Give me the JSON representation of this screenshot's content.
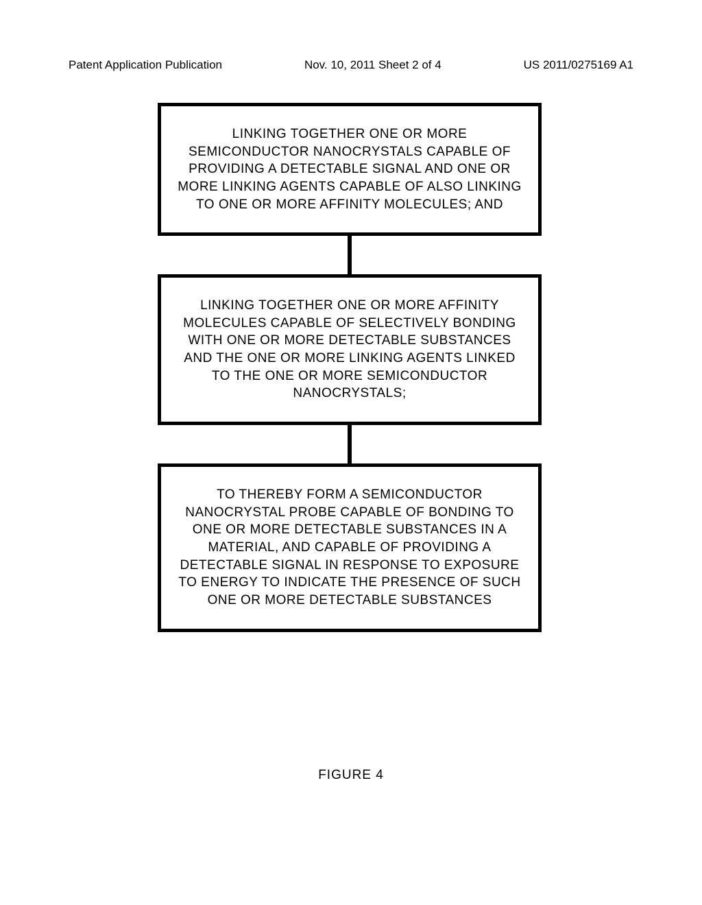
{
  "header": {
    "left": "Patent Application Publication",
    "center": "Nov. 10, 2011  Sheet 2 of 4",
    "right": "US 2011/0275169 A1"
  },
  "flowchart": {
    "type": "flowchart",
    "box_border_color": "#000000",
    "box_border_width": 5,
    "box_background": "#ffffff",
    "connector_color": "#000000",
    "connector_width": 6,
    "connector_height": 56,
    "text_color": "#000000",
    "font_size": 19,
    "nodes": [
      {
        "id": "box1",
        "text": "LINKING TOGETHER ONE OR MORE SEMICONDUCTOR NANOCRYSTALS CAPABLE OF PROVIDING A DETECTABLE SIGNAL AND ONE OR MORE LINKING AGENTS CAPABLE OF ALSO LINKING TO ONE OR MORE AFFINITY MOLECULES; AND"
      },
      {
        "id": "box2",
        "text": "LINKING TOGETHER ONE OR MORE AFFINITY MOLECULES CAPABLE OF SELECTIVELY BONDING WITH ONE OR MORE DETECTABLE SUBSTANCES AND THE ONE OR MORE LINKING AGENTS LINKED TO THE ONE OR MORE SEMICONDUCTOR NANOCRYSTALS;"
      },
      {
        "id": "box3",
        "text": "TO THEREBY FORM A SEMICONDUCTOR NANOCRYSTAL PROBE CAPABLE OF BONDING TO ONE OR MORE DETECTABLE SUBSTANCES IN A MATERIAL, AND CAPABLE OF PROVIDING A DETECTABLE SIGNAL IN RESPONSE TO EXPOSURE TO ENERGY TO INDICATE THE PRESENCE OF SUCH ONE OR MORE DETECTABLE SUBSTANCES"
      }
    ],
    "edges": [
      {
        "from": "box1",
        "to": "box2"
      },
      {
        "from": "box2",
        "to": "box3"
      }
    ]
  },
  "figure_label": "FIGURE 4"
}
